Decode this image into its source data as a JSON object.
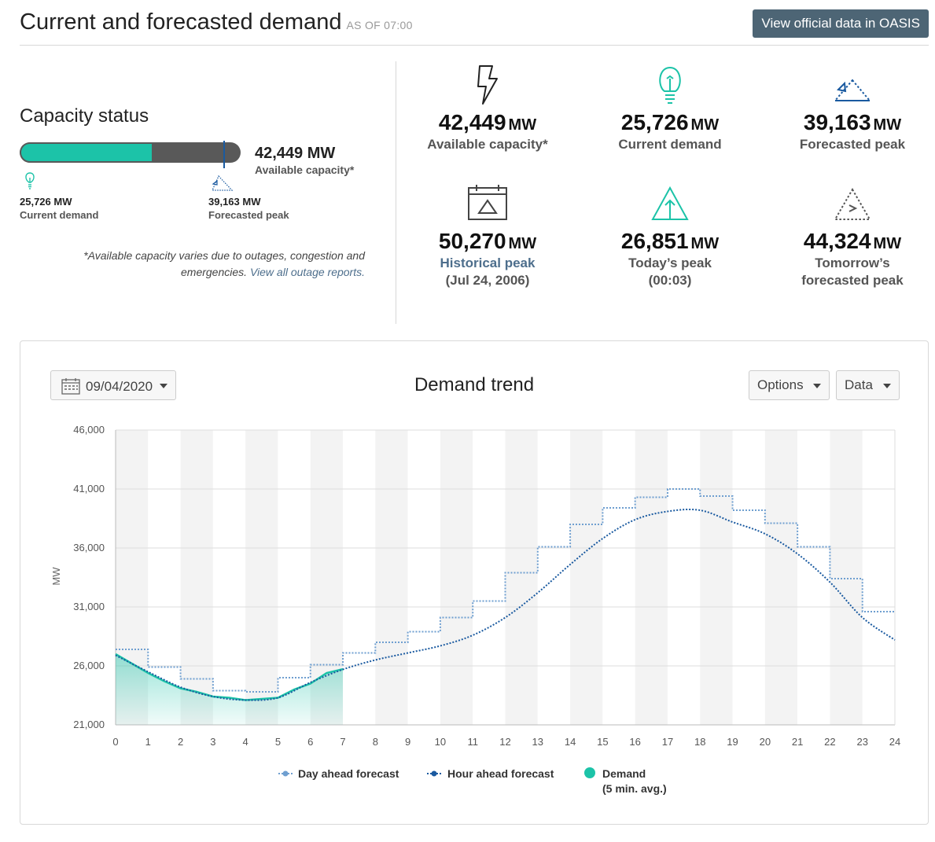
{
  "header": {
    "title": "Current and forecasted demand",
    "as_of": "AS OF 07:00",
    "oasis_button": "View official data in OASIS"
  },
  "capacity": {
    "title": "Capacity status",
    "available_value": "42,449 MW",
    "available_label": "Available capacity*",
    "fill_fraction": 0.606,
    "marker_fraction": 0.923,
    "current_value": "25,726 MW",
    "current_label": "Current demand",
    "forecast_value": "39,163 MW",
    "forecast_label": "Forecasted peak",
    "note": "*Available capacity varies due to outages, congestion and emergencies.",
    "note_link": "View all outage reports."
  },
  "stats": [
    {
      "num": "42,449",
      "unit": "MW",
      "label": "Available capacity*"
    },
    {
      "num": "25,726",
      "unit": "MW",
      "label": "Current demand"
    },
    {
      "num": "39,163",
      "unit": "MW",
      "label": "Forecasted peak"
    },
    {
      "num": "50,270",
      "unit": "MW",
      "label": "Historical peak",
      "sub": "(Jul 24, 2006)"
    },
    {
      "num": "26,851",
      "unit": "MW",
      "label": "Today’s peak",
      "sub": "(00:03)"
    },
    {
      "num": "44,324",
      "unit": "MW",
      "label": "Tomorrow’s",
      "sub": "forecasted peak"
    }
  ],
  "controls": {
    "date": "09/04/2020",
    "options": "Options",
    "data": "Data"
  },
  "colors": {
    "accent_teal": "#1cc3a8",
    "dark_blue": "#1a5aa0",
    "light_blue": "#6f9fd0",
    "button": "#4d6575"
  },
  "chart_data": {
    "type": "line",
    "title": "Demand trend",
    "ylabel": "MW",
    "xlabel": "",
    "ylim": [
      21000,
      46000
    ],
    "xlim": [
      0,
      24
    ],
    "yticks": [
      "21,000",
      "26,000",
      "31,000",
      "36,000",
      "41,000",
      "46,000"
    ],
    "ytick_values": [
      21000,
      26000,
      31000,
      36000,
      41000,
      46000
    ],
    "xticks": [
      "0",
      "1",
      "2",
      "3",
      "4",
      "5",
      "6",
      "7",
      "8",
      "9",
      "10",
      "11",
      "12",
      "13",
      "14",
      "15",
      "16",
      "17",
      "18",
      "19",
      "20",
      "21",
      "22",
      "23",
      "24"
    ],
    "series": [
      {
        "name": "Day ahead forecast",
        "style": "step",
        "x": [
          0,
          1,
          2,
          3,
          4,
          5,
          6,
          7,
          8,
          9,
          10,
          11,
          12,
          13,
          14,
          15,
          16,
          17,
          18,
          19,
          20,
          21,
          22,
          23,
          24
        ],
        "values": [
          27400,
          25900,
          24900,
          23900,
          23800,
          25000,
          26100,
          27100,
          28000,
          28900,
          30100,
          31500,
          33900,
          36100,
          38000,
          39400,
          40300,
          41000,
          40400,
          39200,
          38100,
          36100,
          33400,
          30600,
          30600
        ]
      },
      {
        "name": "Hour ahead forecast",
        "style": "line",
        "x": [
          0,
          1,
          2,
          3,
          4,
          5,
          6,
          7,
          8,
          9,
          10,
          11,
          12,
          13,
          14,
          15,
          16,
          17,
          18,
          19,
          20,
          21,
          22,
          23,
          24
        ],
        "values": [
          26900,
          25500,
          24200,
          23400,
          23100,
          23300,
          24600,
          25700,
          26500,
          27100,
          27700,
          28600,
          30100,
          32200,
          34600,
          36800,
          38400,
          39100,
          39200,
          38200,
          37200,
          35500,
          33100,
          30100,
          28200
        ]
      },
      {
        "name": "Demand",
        "sublabel": "(5 min. avg.)",
        "style": "area",
        "x": [
          0,
          0.5,
          1,
          1.5,
          2,
          2.5,
          3,
          3.5,
          4,
          4.5,
          5,
          5.5,
          6,
          6.5,
          7
        ],
        "values": [
          27000,
          26200,
          25400,
          24700,
          24100,
          23800,
          23400,
          23300,
          23100,
          23200,
          23300,
          24000,
          24500,
          25400,
          25726
        ]
      }
    ]
  }
}
